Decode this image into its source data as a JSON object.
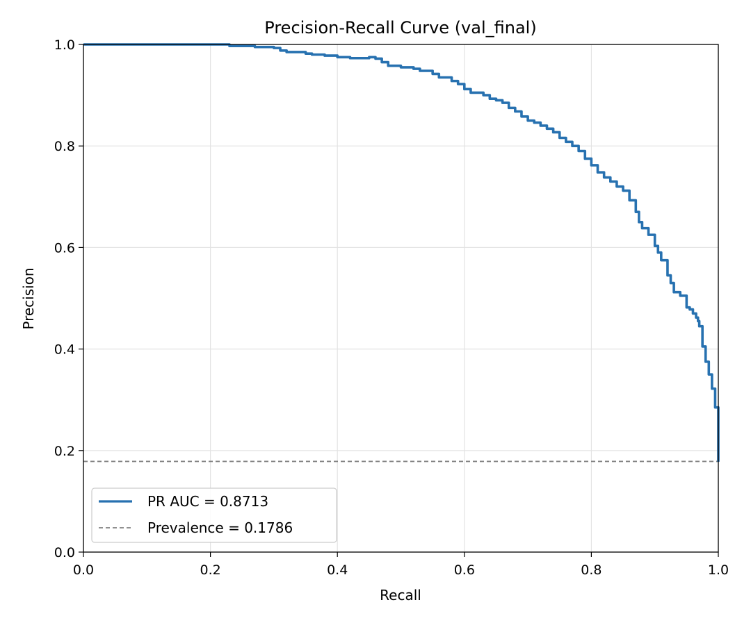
{
  "chart_data": {
    "type": "line",
    "title": "Precision-Recall Curve (val_final)",
    "xlabel": "Recall",
    "ylabel": "Precision",
    "xlim": [
      0.0,
      1.0
    ],
    "ylim": [
      0.0,
      1.0
    ],
    "xticks": [
      "0.0",
      "0.2",
      "0.4",
      "0.6",
      "0.8",
      "1.0"
    ],
    "yticks": [
      "0.0",
      "0.2",
      "0.4",
      "0.6",
      "0.8",
      "1.0"
    ],
    "grid": true,
    "legend_position": "lower-left",
    "series": [
      {
        "name": "PR AUC = 0.8713",
        "color": "#2771b0",
        "style": "solid",
        "x": [
          0.0,
          0.05,
          0.1,
          0.15,
          0.2,
          0.228,
          0.23,
          0.27,
          0.3,
          0.31,
          0.32,
          0.35,
          0.36,
          0.38,
          0.4,
          0.42,
          0.45,
          0.46,
          0.47,
          0.48,
          0.5,
          0.52,
          0.53,
          0.55,
          0.56,
          0.58,
          0.59,
          0.6,
          0.61,
          0.63,
          0.64,
          0.65,
          0.66,
          0.67,
          0.68,
          0.69,
          0.7,
          0.71,
          0.72,
          0.73,
          0.74,
          0.75,
          0.76,
          0.77,
          0.78,
          0.79,
          0.8,
          0.81,
          0.82,
          0.83,
          0.84,
          0.85,
          0.86,
          0.87,
          0.875,
          0.88,
          0.89,
          0.9,
          0.905,
          0.91,
          0.92,
          0.925,
          0.93,
          0.94,
          0.95,
          0.955,
          0.96,
          0.965,
          0.968,
          0.97,
          0.975,
          0.98,
          0.985,
          0.99,
          0.995,
          1.0,
          1.0
        ],
        "y": [
          1.0,
          1.0,
          1.0,
          1.0,
          1.0,
          1.0,
          0.997,
          0.995,
          0.993,
          0.988,
          0.985,
          0.982,
          0.98,
          0.978,
          0.975,
          0.973,
          0.975,
          0.972,
          0.965,
          0.958,
          0.955,
          0.952,
          0.948,
          0.942,
          0.935,
          0.928,
          0.922,
          0.912,
          0.905,
          0.9,
          0.893,
          0.89,
          0.885,
          0.875,
          0.868,
          0.858,
          0.85,
          0.846,
          0.84,
          0.834,
          0.827,
          0.816,
          0.808,
          0.8,
          0.79,
          0.775,
          0.762,
          0.748,
          0.738,
          0.73,
          0.72,
          0.712,
          0.693,
          0.67,
          0.65,
          0.638,
          0.625,
          0.603,
          0.59,
          0.575,
          0.545,
          0.53,
          0.512,
          0.505,
          0.482,
          0.478,
          0.47,
          0.462,
          0.455,
          0.445,
          0.405,
          0.375,
          0.35,
          0.322,
          0.285,
          0.25,
          0.178
        ]
      },
      {
        "name": "Prevalence = 0.1786",
        "color": "#808080",
        "style": "dashed",
        "x": [
          0.0,
          1.0
        ],
        "y": [
          0.1786,
          0.1786
        ]
      }
    ]
  }
}
